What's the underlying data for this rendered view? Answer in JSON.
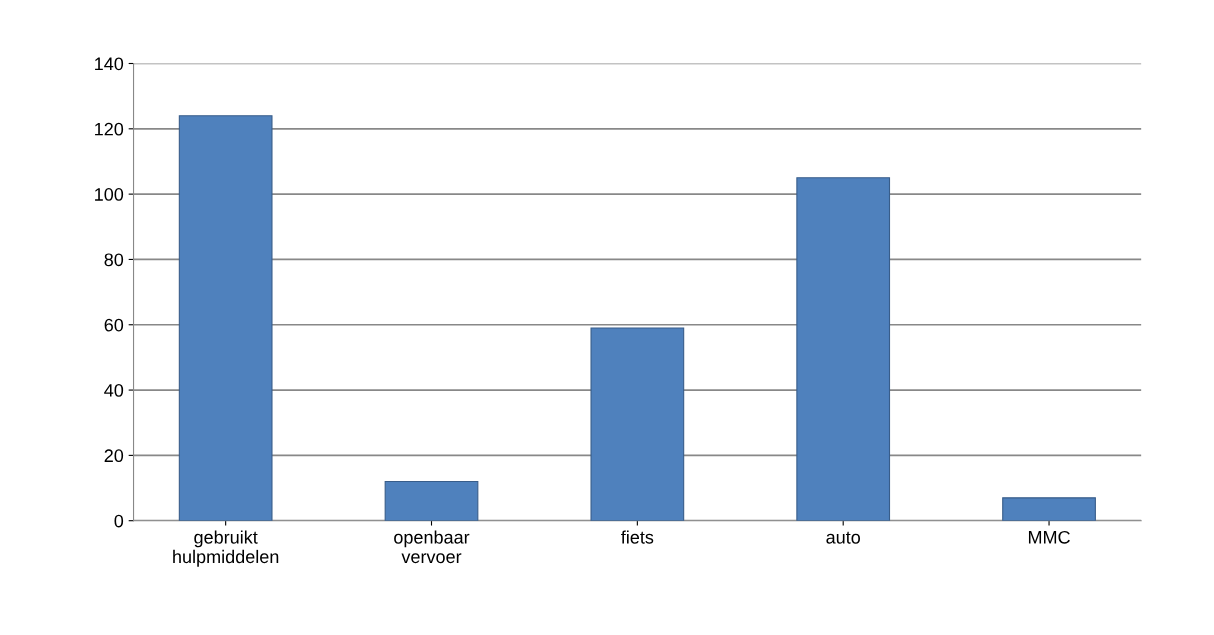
{
  "chart_data": {
    "type": "bar",
    "categories": [
      "gebruikt\nhulpmiddelen",
      "openbaar\nvervoer",
      "fiets",
      "auto",
      "MMC"
    ],
    "values": [
      124,
      12,
      59,
      105,
      7
    ],
    "color": "#4f81bd",
    "ylim": [
      0,
      140
    ],
    "yticks": [
      0,
      20,
      40,
      60,
      80,
      100,
      120,
      140
    ],
    "grid": "y",
    "legend": false
  }
}
